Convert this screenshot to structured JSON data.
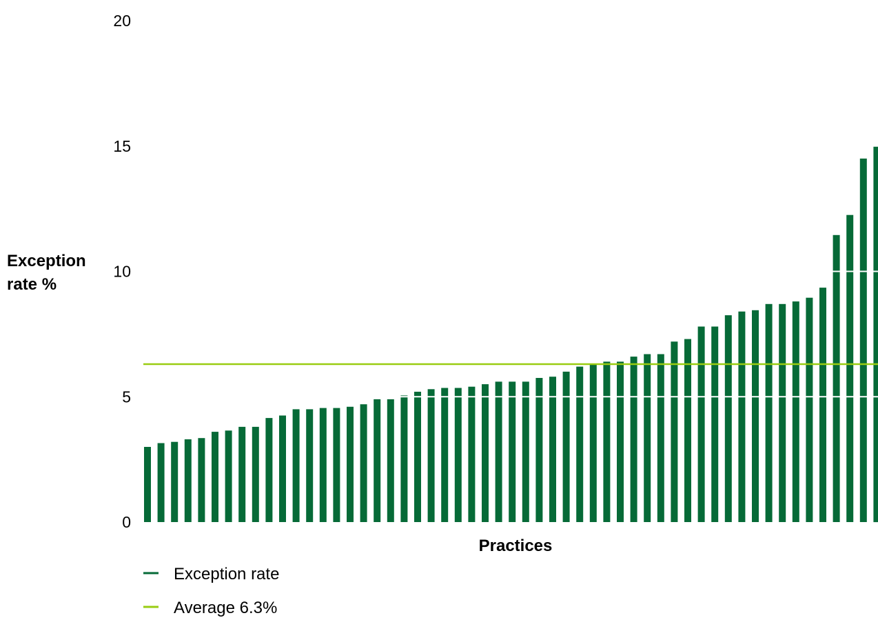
{
  "chart_data": {
    "type": "bar",
    "ylabel_lines": [
      "Exception",
      "rate %"
    ],
    "xlabel": "Practices",
    "ylim": [
      0,
      20
    ],
    "yticks": [
      0,
      5,
      10,
      15,
      20
    ],
    "values": [
      3.0,
      3.15,
      3.2,
      3.3,
      3.35,
      3.6,
      3.65,
      3.8,
      3.8,
      4.15,
      4.25,
      4.5,
      4.5,
      4.55,
      4.55,
      4.6,
      4.7,
      4.9,
      4.9,
      5.05,
      5.2,
      5.3,
      5.35,
      5.35,
      5.4,
      5.5,
      5.6,
      5.6,
      5.6,
      5.75,
      5.8,
      6.0,
      6.2,
      6.3,
      6.4,
      6.4,
      6.6,
      6.7,
      6.7,
      7.2,
      7.3,
      7.8,
      7.8,
      8.25,
      8.4,
      8.45,
      8.7,
      8.7,
      8.8,
      8.95,
      9.35,
      11.45,
      12.25,
      14.5,
      15.0
    ],
    "series": [
      {
        "name": "Exception rate",
        "color": "#066a37"
      },
      {
        "name": "Average 6.3%",
        "value": 6.3,
        "color": "#99cc11"
      }
    ],
    "grid": "white gridlines over bars at 5, 10 and 15",
    "legend_placement": "bottom-left"
  }
}
